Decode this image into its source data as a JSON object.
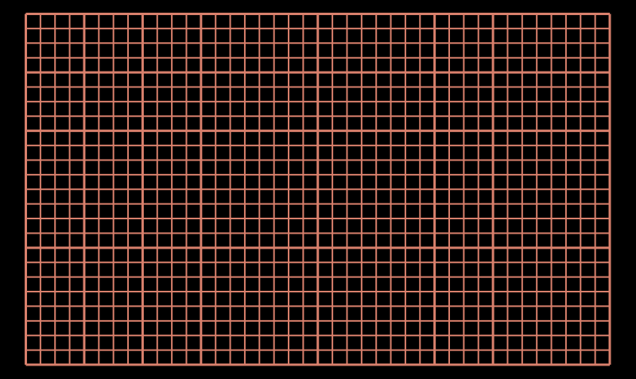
{
  "colors": {
    "background": "#000000",
    "grid_line": "#d9806c"
  }
}
